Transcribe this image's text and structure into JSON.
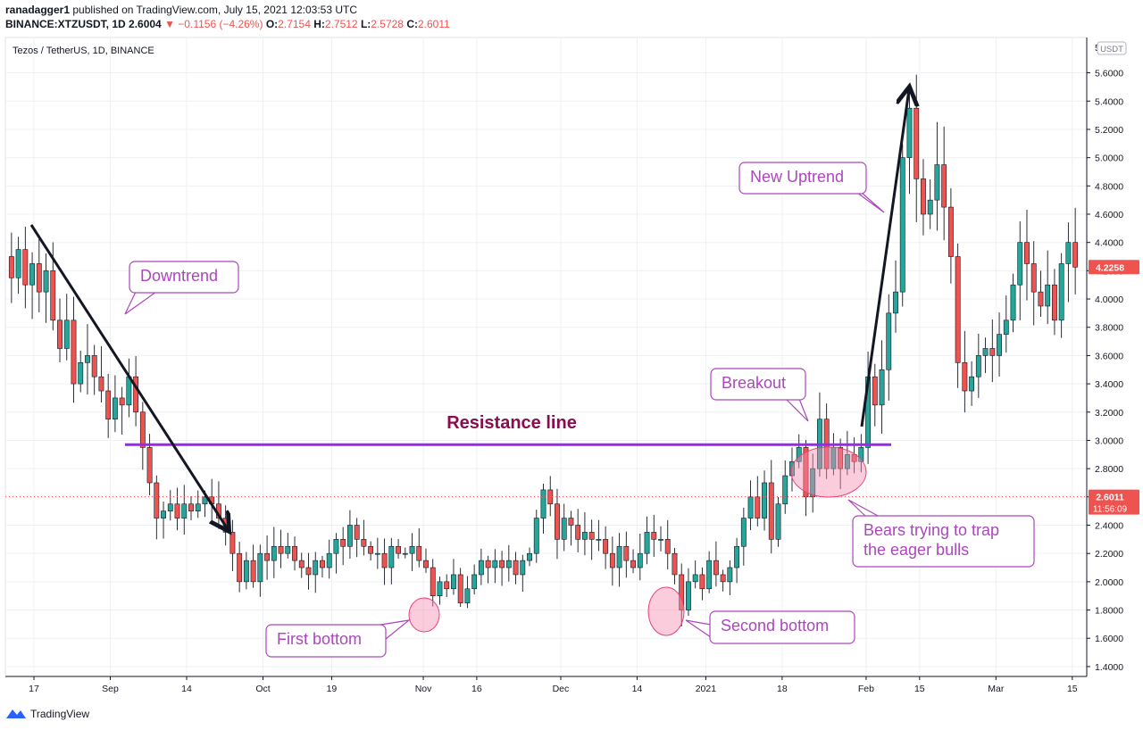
{
  "header": {
    "publisher": "ranadagger1",
    "published_text": "published on TradingView.com, July 15, 2021 12:03:53 UTC",
    "symbol": "BINANCE:XTZUSDT, 1D",
    "last": "2.6004",
    "arrow": "▼",
    "change": "−0.1156 (−4.26%)",
    "o_label": "O:",
    "o": "2.7154",
    "h_label": "H:",
    "h": "2.7512",
    "l_label": "L:",
    "l": "2.5728",
    "c_label": "C:",
    "c": "2.6011"
  },
  "footer": {
    "brand": "TradingView"
  },
  "chart_data": {
    "type": "candlestick",
    "title": "Tezos / TetherUS, 1D, BINANCE",
    "currency": "USDT",
    "y_ticks": [
      1.4,
      1.6,
      1.8,
      2.0,
      2.2,
      2.4,
      2.6,
      2.8,
      3.0,
      3.2,
      3.4,
      3.6,
      3.8,
      4.0,
      4.2,
      4.4,
      4.6,
      4.8,
      5.0,
      5.2,
      5.4,
      5.6
    ],
    "y_tick_labels": [
      "1.4000",
      "1.6000",
      "1.8000",
      "2.0000",
      "2.2000",
      "2.4000",
      "2.6000",
      "2.8000",
      "3.0000",
      "3.2000",
      "3.4000",
      "3.6000",
      "3.8000",
      "4.0000",
      "4.2000",
      "4.4000",
      "4.6000",
      "4.8000",
      "5.0000",
      "5.2000",
      "5.4000",
      "5.6000"
    ],
    "top_tick_label": "5.",
    "ylim": [
      1.33,
      5.85
    ],
    "x_labels": [
      "17",
      "Sep",
      "14",
      "Oct",
      "19",
      "Nov",
      "16",
      "Dec",
      "14",
      "2021",
      "18",
      "Feb",
      "15",
      "Mar",
      "15"
    ],
    "x_label_days": [
      0,
      10,
      20,
      30,
      39,
      51,
      58,
      69,
      79,
      88,
      98,
      109,
      116,
      126,
      136
    ],
    "price_labels": [
      {
        "value": 4.2258,
        "text": "4.2258"
      },
      {
        "value": 2.6011,
        "text": "2.6011",
        "sub": "11:56:09"
      }
    ],
    "closes": [
      4.15,
      4.35,
      4.1,
      4.25,
      4.05,
      4.2,
      3.85,
      3.65,
      3.85,
      3.4,
      3.55,
      3.6,
      3.45,
      3.35,
      3.15,
      3.3,
      3.25,
      3.45,
      3.2,
      2.95,
      2.7,
      2.45,
      2.5,
      2.55,
      2.45,
      2.55,
      2.5,
      2.55,
      2.6,
      2.55,
      2.45,
      2.35,
      2.2,
      2.0,
      2.15,
      2.0,
      2.2,
      2.15,
      2.25,
      2.2,
      2.25,
      2.15,
      2.1,
      2.05,
      2.15,
      2.1,
      2.2,
      2.3,
      2.25,
      2.4,
      2.3,
      2.25,
      2.2,
      2.2,
      2.1,
      2.25,
      2.2,
      2.2,
      2.25,
      2.15,
      2.1,
      1.9,
      2.0,
      1.95,
      2.05,
      1.85,
      1.95,
      2.05,
      2.15,
      2.1,
      2.15,
      2.1,
      2.15,
      2.05,
      2.15,
      2.2,
      2.45,
      2.65,
      2.55,
      2.3,
      2.45,
      2.4,
      2.3,
      2.35,
      2.3,
      2.3,
      2.2,
      2.1,
      2.25,
      2.15,
      2.1,
      2.2,
      2.35,
      2.3,
      2.3,
      2.2,
      2.05,
      1.8,
      2.0,
      2.05,
      1.95,
      2.15,
      2.05,
      2.0,
      2.1,
      2.25,
      2.45,
      2.6,
      2.45,
      2.7,
      2.3,
      2.55,
      2.75,
      2.85,
      2.95,
      2.6,
      2.8,
      3.15,
      2.8,
      2.95,
      2.8,
      2.9,
      2.85,
      2.95,
      3.45,
      3.25,
      3.5,
      3.9,
      4.05,
      5.0,
      5.35,
      4.85,
      4.6,
      4.7,
      4.95,
      4.65,
      4.3,
      3.55,
      3.35,
      3.45,
      3.6,
      3.65,
      3.6,
      3.75,
      3.85,
      4.1,
      4.4,
      4.25,
      4.05,
      3.95,
      4.1,
      3.85,
      4.25,
      4.4,
      4.2258
    ],
    "annotations": [
      {
        "text": "Downtrend"
      },
      {
        "text": "First bottom"
      },
      {
        "text": "Resistance line",
        "value": 2.97
      },
      {
        "text": "Second bottom"
      },
      {
        "text": "Breakout"
      },
      {
        "text": "Bears trying to trap"
      },
      {
        "text": "the eager bulls"
      },
      {
        "text": "New Uptrend"
      }
    ],
    "colors": {
      "up": "#26a69a",
      "down": "#ef5350",
      "resistance": "#9c27f0",
      "annotation": "#ab47bc",
      "grid": "#eef0f3"
    }
  }
}
